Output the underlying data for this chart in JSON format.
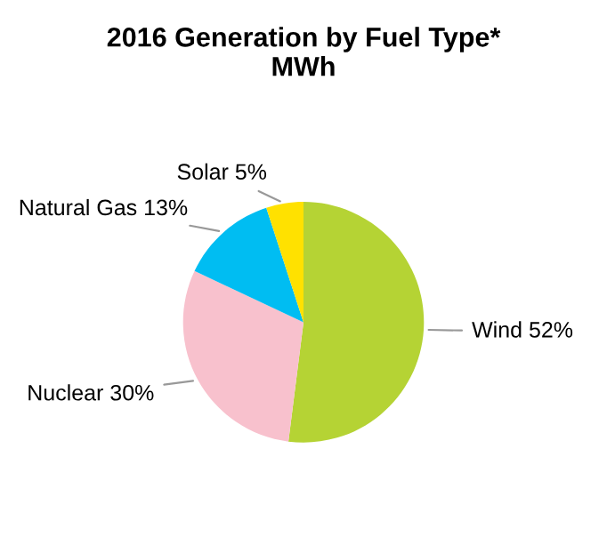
{
  "chart_data": {
    "type": "pie",
    "title": "2016 Generation by Fuel Type*\nMWh",
    "categories": [
      "Wind",
      "Nuclear",
      "Natural Gas",
      "Solar"
    ],
    "values": [
      52,
      30,
      13,
      5
    ],
    "value_labels": [
      "52%",
      "30%",
      "13%",
      "5%"
    ],
    "colors": [
      "#b5d334",
      "#f8c1cd",
      "#00bdf2",
      "#ffe100"
    ],
    "legend": false
  }
}
